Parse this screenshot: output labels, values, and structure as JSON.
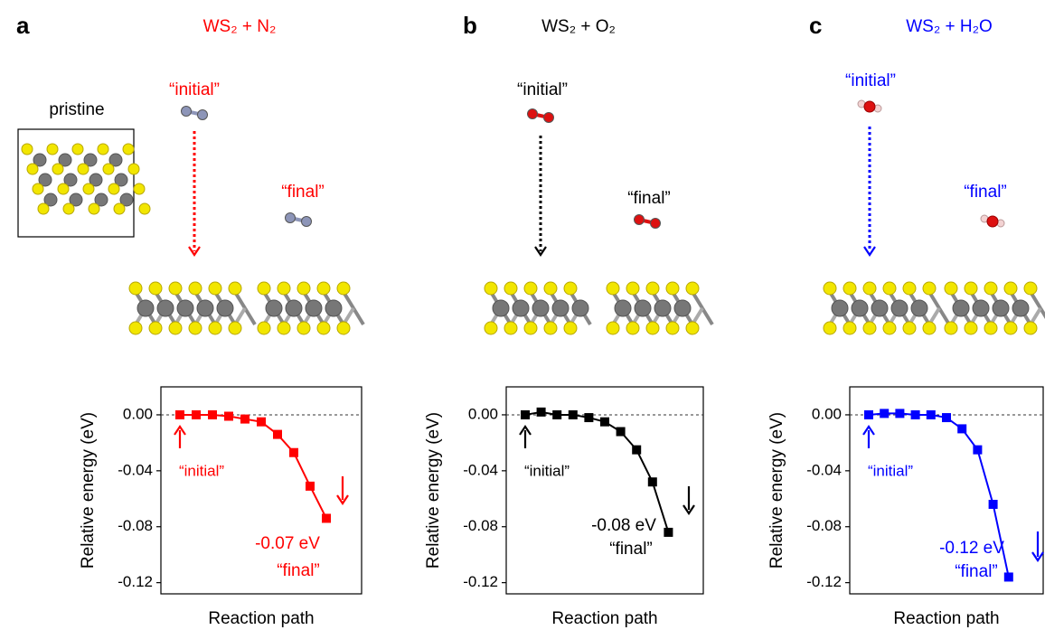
{
  "chart_data": [
    {
      "type": "line",
      "panel": "a",
      "title": "WS₂ + N₂",
      "pristine_label": "pristine",
      "initial_label": "“initial”",
      "final_label": "“final”",
      "color": "#ff0000",
      "molecule_color": "#8d95b8",
      "ylabel": "Relative energy (eV)",
      "xlabel": "Reaction path",
      "values": [
        0,
        0,
        0,
        -0.001,
        -0.003,
        -0.005,
        -0.014,
        -0.027,
        -0.051,
        -0.074
      ],
      "ylim": [
        -0.128,
        0.02
      ],
      "yticks": [
        {
          "value": 0,
          "label": "0.00"
        },
        {
          "value": -0.04,
          "label": "-0.04"
        },
        {
          "value": -0.08,
          "label": "-0.08"
        },
        {
          "value": -0.12,
          "label": "-0.12"
        }
      ],
      "annotations": {
        "initial": "“initial”",
        "energy": "-0.07 eV",
        "final": "“final”"
      }
    },
    {
      "type": "line",
      "panel": "b",
      "title": "WS₂ + O₂",
      "initial_label": "“initial”",
      "final_label": "“final”",
      "color": "#000000",
      "molecule_color": "#dd1111",
      "ylabel": "Relative energy (eV)",
      "xlabel": "Reaction path",
      "values": [
        0,
        0.002,
        0,
        0,
        -0.002,
        -0.005,
        -0.012,
        -0.025,
        -0.048,
        -0.084
      ],
      "ylim": [
        -0.128,
        0.02
      ],
      "yticks": [
        {
          "value": 0,
          "label": "0.00"
        },
        {
          "value": -0.04,
          "label": "-0.04"
        },
        {
          "value": -0.08,
          "label": "-0.08"
        },
        {
          "value": -0.12,
          "label": "-0.12"
        }
      ],
      "annotations": {
        "initial": "“initial”",
        "energy": "-0.08 eV",
        "final": "“final”"
      }
    },
    {
      "type": "line",
      "panel": "c",
      "title": "WS₂ + H₂O",
      "initial_label": "“initial”",
      "final_label": "“final”",
      "color": "#0000ff",
      "molecule_color": "#dd1111",
      "ylabel": "Relative energy (eV)",
      "xlabel": "Reaction path",
      "values": [
        0,
        0.001,
        0.001,
        0,
        0,
        -0.002,
        -0.01,
        -0.025,
        -0.064,
        -0.116
      ],
      "ylim": [
        -0.128,
        0.02
      ],
      "yticks": [
        {
          "value": 0,
          "label": "0.00"
        },
        {
          "value": -0.04,
          "label": "-0.04"
        },
        {
          "value": -0.08,
          "label": "-0.08"
        },
        {
          "value": -0.12,
          "label": "-0.12"
        }
      ],
      "annotations": {
        "initial": "“initial”",
        "energy": "-0.12 eV",
        "final": "“final”"
      }
    }
  ]
}
